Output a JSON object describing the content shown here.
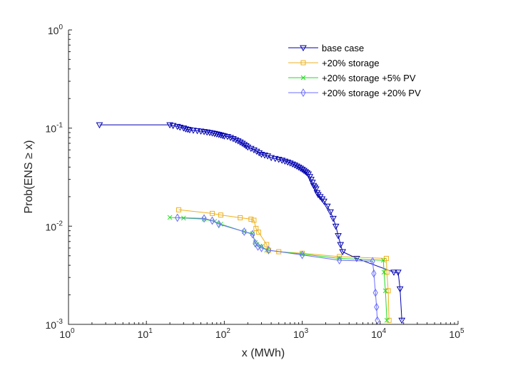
{
  "chart_data": {
    "type": "line",
    "xscale": "log",
    "yscale": "log",
    "xlabel": "x (MWh)",
    "ylabel_parts": [
      "Prob(ENS ",
      "≥",
      " x)"
    ],
    "xlim": [
      1,
      100000
    ],
    "ylim": [
      0.001,
      1
    ],
    "x_ticks": [
      {
        "value": 1,
        "base": "10",
        "exp": "0"
      },
      {
        "value": 10,
        "base": "10",
        "exp": "1"
      },
      {
        "value": 100,
        "base": "10",
        "exp": "2"
      },
      {
        "value": 1000,
        "base": "10",
        "exp": "3"
      },
      {
        "value": 10000,
        "base": "10",
        "exp": "4"
      },
      {
        "value": 100000,
        "base": "10",
        "exp": "5"
      }
    ],
    "y_ticks": [
      {
        "value": 0.001,
        "base": "10",
        "exp": "-3"
      },
      {
        "value": 0.01,
        "base": "10",
        "exp": "-2"
      },
      {
        "value": 0.1,
        "base": "10",
        "exp": "-1"
      },
      {
        "value": 1,
        "base": "10",
        "exp": "0"
      }
    ],
    "legend_position": "top-right",
    "series": [
      {
        "name": "base case",
        "color": "#0000b0",
        "marker": "triangle-down",
        "points": [
          [
            2.5,
            0.108
          ],
          [
            20,
            0.108
          ],
          [
            22,
            0.106
          ],
          [
            25,
            0.104
          ],
          [
            27,
            0.102
          ],
          [
            30,
            0.1
          ],
          [
            32,
            0.098
          ],
          [
            34,
            0.097
          ],
          [
            36,
            0.096
          ],
          [
            40,
            0.095
          ],
          [
            45,
            0.094
          ],
          [
            50,
            0.093
          ],
          [
            55,
            0.092
          ],
          [
            60,
            0.091
          ],
          [
            65,
            0.09
          ],
          [
            70,
            0.089
          ],
          [
            75,
            0.088
          ],
          [
            80,
            0.087
          ],
          [
            85,
            0.086
          ],
          [
            90,
            0.085
          ],
          [
            95,
            0.084
          ],
          [
            100,
            0.083
          ],
          [
            110,
            0.082
          ],
          [
            120,
            0.08
          ],
          [
            130,
            0.078
          ],
          [
            140,
            0.076
          ],
          [
            150,
            0.074
          ],
          [
            160,
            0.072
          ],
          [
            170,
            0.07
          ],
          [
            180,
            0.068
          ],
          [
            190,
            0.066
          ],
          [
            200,
            0.064
          ],
          [
            220,
            0.062
          ],
          [
            240,
            0.06
          ],
          [
            260,
            0.058
          ],
          [
            280,
            0.056
          ],
          [
            300,
            0.054
          ],
          [
            330,
            0.053
          ],
          [
            360,
            0.052
          ],
          [
            400,
            0.05
          ],
          [
            450,
            0.049
          ],
          [
            500,
            0.048
          ],
          [
            550,
            0.047
          ],
          [
            600,
            0.046
          ],
          [
            650,
            0.045
          ],
          [
            700,
            0.044
          ],
          [
            750,
            0.043
          ],
          [
            800,
            0.042
          ],
          [
            850,
            0.041
          ],
          [
            900,
            0.04
          ],
          [
            950,
            0.039
          ],
          [
            1000,
            0.038
          ],
          [
            1050,
            0.037
          ],
          [
            1100,
            0.036
          ],
          [
            1150,
            0.035
          ],
          [
            1200,
            0.034
          ],
          [
            1250,
            0.032
          ],
          [
            1300,
            0.03
          ],
          [
            1350,
            0.028
          ],
          [
            1400,
            0.026
          ],
          [
            1450,
            0.025
          ],
          [
            1500,
            0.024
          ],
          [
            1550,
            0.022
          ],
          [
            1600,
            0.021
          ],
          [
            1700,
            0.02
          ],
          [
            1800,
            0.019
          ],
          [
            1900,
            0.018
          ],
          [
            2100,
            0.016
          ],
          [
            2300,
            0.014
          ],
          [
            2500,
            0.012
          ],
          [
            2700,
            0.01
          ],
          [
            2900,
            0.008
          ],
          [
            3100,
            0.0065
          ],
          [
            3300,
            0.0055
          ],
          [
            5000,
            0.0047
          ],
          [
            15000,
            0.0034
          ],
          [
            17000,
            0.0034
          ],
          [
            18000,
            0.0023
          ],
          [
            19000,
            0.0011
          ]
        ]
      },
      {
        "name": "+20% storage",
        "color": "#edb120",
        "marker": "square",
        "points": [
          [
            26,
            0.0147
          ],
          [
            70,
            0.0135
          ],
          [
            90,
            0.013
          ],
          [
            160,
            0.0122
          ],
          [
            220,
            0.0118
          ],
          [
            240,
            0.0115
          ],
          [
            255,
            0.0095
          ],
          [
            275,
            0.0087
          ],
          [
            350,
            0.0065
          ],
          [
            370,
            0.0057
          ],
          [
            500,
            0.0055
          ],
          [
            1000,
            0.0053
          ],
          [
            3000,
            0.0049
          ],
          [
            12000,
            0.0047
          ],
          [
            12200,
            0.0034
          ],
          [
            12700,
            0.0022
          ],
          [
            13000,
            0.0011
          ]
        ]
      },
      {
        "name": "+20% storage +5% PV",
        "color": "#22dd22",
        "marker": "x",
        "points": [
          [
            20,
            0.0123
          ],
          [
            30,
            0.0121
          ],
          [
            55,
            0.0118
          ],
          [
            75,
            0.0112
          ],
          [
            90,
            0.0105
          ],
          [
            180,
            0.0088
          ],
          [
            230,
            0.0084
          ],
          [
            250,
            0.0068
          ],
          [
            260,
            0.0065
          ],
          [
            300,
            0.0062
          ],
          [
            350,
            0.0057
          ],
          [
            1000,
            0.0052
          ],
          [
            3000,
            0.0047
          ],
          [
            11000,
            0.0045
          ],
          [
            11200,
            0.0034
          ],
          [
            11700,
            0.0022
          ],
          [
            12200,
            0.0011
          ]
        ]
      },
      {
        "name": "+20% storage +20% PV",
        "color": "#6e6eff",
        "marker": "diamond",
        "points": [
          [
            25,
            0.0122
          ],
          [
            55,
            0.012
          ],
          [
            70,
            0.0114
          ],
          [
            85,
            0.0105
          ],
          [
            180,
            0.0088
          ],
          [
            230,
            0.0083
          ],
          [
            250,
            0.0067
          ],
          [
            270,
            0.0062
          ],
          [
            300,
            0.006
          ],
          [
            370,
            0.0057
          ],
          [
            1000,
            0.0051
          ],
          [
            3000,
            0.0045
          ],
          [
            8000,
            0.0044
          ],
          [
            8300,
            0.0033
          ],
          [
            8700,
            0.0021
          ],
          [
            9000,
            0.0015
          ],
          [
            9200,
            0.0011
          ]
        ]
      }
    ]
  }
}
